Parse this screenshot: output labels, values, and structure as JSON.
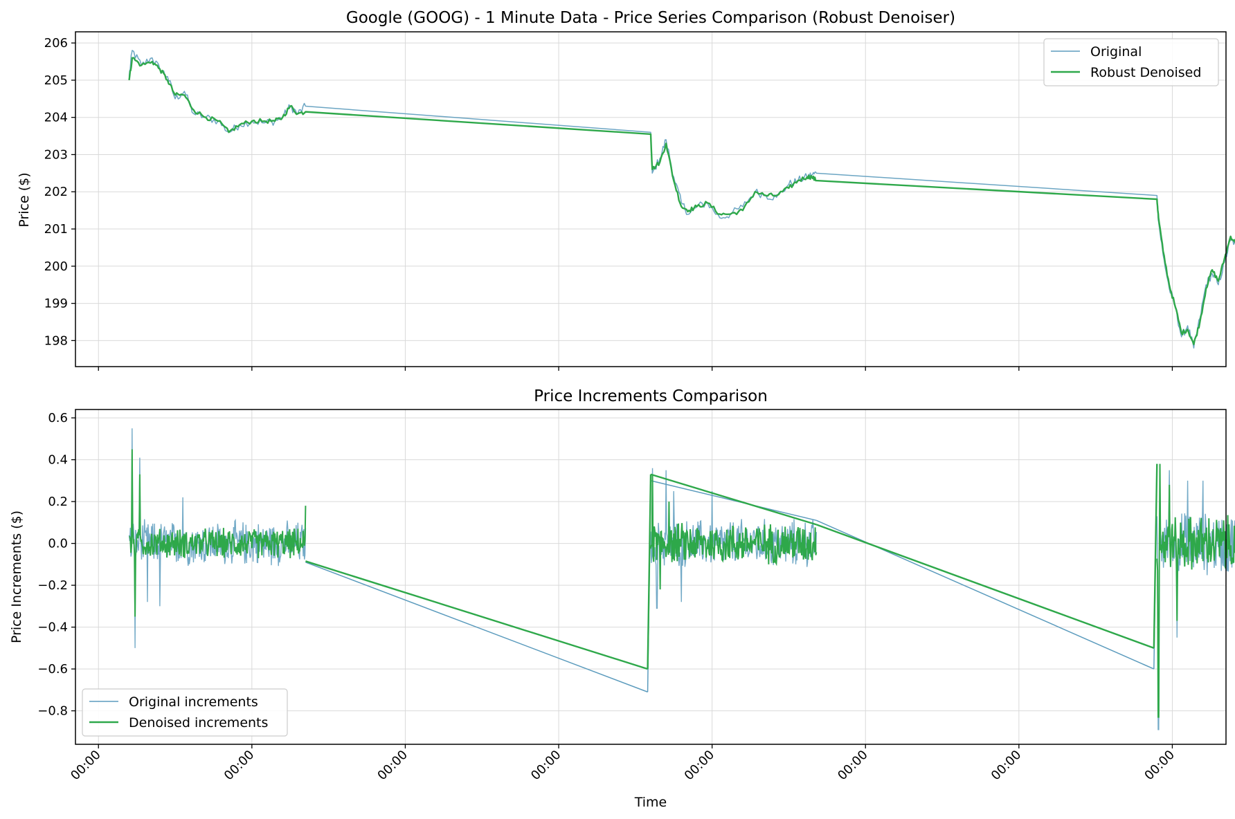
{
  "colors": {
    "original": "#5b9bbd",
    "denoised": "#2ea84a",
    "grid": "#d9d9d9",
    "axis": "#000000"
  },
  "chart_data": [
    {
      "type": "line",
      "title": "Google (GOOG) - 1 Minute Data - Price Series Comparison (Robust Denoiser)",
      "xlabel": "",
      "ylabel": "Price ($)",
      "ylim": [
        197.3,
        206.3
      ],
      "yticks": [
        198,
        199,
        200,
        201,
        202,
        203,
        204,
        205,
        206
      ],
      "xticks": [
        "00:00",
        "00:00",
        "00:00",
        "00:00",
        "00:00",
        "00:00",
        "00:00",
        "00:00"
      ],
      "xlim": [
        -0.15,
        7.35
      ],
      "grid": true,
      "legend_position": "top-right",
      "series": [
        {
          "name": "Original",
          "color": "#5b9bbd",
          "points": [
            [
              0.2,
              205.1
            ],
            [
              0.22,
              205.8
            ],
            [
              0.28,
              205.4
            ],
            [
              0.35,
              205.6
            ],
            [
              0.4,
              205.3
            ],
            [
              0.45,
              205.1
            ],
            [
              0.5,
              204.5
            ],
            [
              0.56,
              204.7
            ],
            [
              0.62,
              204.1
            ],
            [
              0.7,
              204.0
            ],
            [
              0.78,
              203.9
            ],
            [
              0.85,
              203.6
            ],
            [
              0.92,
              203.8
            ],
            [
              1.0,
              203.9
            ],
            [
              1.08,
              203.85
            ],
            [
              1.15,
              203.9
            ],
            [
              1.2,
              204.0
            ],
            [
              1.25,
              204.3
            ],
            [
              1.3,
              204.1
            ],
            [
              1.35,
              204.3
            ],
            [
              3.6,
              203.6
            ],
            [
              3.61,
              202.5
            ],
            [
              3.66,
              202.9
            ],
            [
              3.7,
              203.4
            ],
            [
              3.75,
              202.4
            ],
            [
              3.8,
              201.7
            ],
            [
              3.85,
              201.4
            ],
            [
              3.9,
              201.6
            ],
            [
              3.97,
              201.7
            ],
            [
              4.05,
              201.3
            ],
            [
              4.12,
              201.4
            ],
            [
              4.2,
              201.6
            ],
            [
              4.28,
              202.0
            ],
            [
              4.35,
              201.9
            ],
            [
              4.42,
              201.85
            ],
            [
              4.5,
              202.2
            ],
            [
              4.56,
              202.3
            ],
            [
              4.62,
              202.4
            ],
            [
              4.65,
              202.45
            ],
            [
              4.68,
              202.5
            ],
            [
              6.9,
              201.9
            ],
            [
              6.91,
              201.2
            ],
            [
              6.94,
              200.3
            ],
            [
              6.98,
              199.4
            ],
            [
              7.02,
              198.9
            ],
            [
              7.06,
              198.1
            ],
            [
              7.1,
              198.4
            ],
            [
              7.14,
              197.8
            ],
            [
              7.18,
              198.6
            ],
            [
              7.22,
              199.5
            ],
            [
              7.26,
              199.8
            ],
            [
              7.3,
              199.5
            ],
            [
              7.34,
              200.1
            ],
            [
              7.38,
              200.7
            ],
            [
              7.42,
              200.6
            ],
            [
              7.46,
              200.3
            ],
            [
              7.5,
              200.4
            ]
          ]
        },
        {
          "name": "Robust Denoised",
          "color": "#2ea84a",
          "points": [
            [
              0.2,
              205.0
            ],
            [
              0.22,
              205.6
            ],
            [
              0.28,
              205.4
            ],
            [
              0.35,
              205.5
            ],
            [
              0.4,
              205.3
            ],
            [
              0.45,
              205.0
            ],
            [
              0.5,
              204.6
            ],
            [
              0.56,
              204.6
            ],
            [
              0.62,
              204.2
            ],
            [
              0.7,
              204.0
            ],
            [
              0.78,
              203.9
            ],
            [
              0.85,
              203.6
            ],
            [
              0.92,
              203.8
            ],
            [
              1.0,
              203.9
            ],
            [
              1.08,
              203.9
            ],
            [
              1.15,
              203.9
            ],
            [
              1.2,
              204.0
            ],
            [
              1.25,
              204.3
            ],
            [
              1.3,
              204.1
            ],
            [
              1.35,
              204.15
            ],
            [
              3.6,
              203.55
            ],
            [
              3.61,
              202.6
            ],
            [
              3.66,
              202.8
            ],
            [
              3.7,
              203.3
            ],
            [
              3.75,
              202.3
            ],
            [
              3.8,
              201.6
            ],
            [
              3.85,
              201.5
            ],
            [
              3.9,
              201.6
            ],
            [
              3.97,
              201.7
            ],
            [
              4.05,
              201.4
            ],
            [
              4.12,
              201.4
            ],
            [
              4.2,
              201.5
            ],
            [
              4.28,
              202.0
            ],
            [
              4.35,
              201.9
            ],
            [
              4.42,
              201.9
            ],
            [
              4.5,
              202.1
            ],
            [
              4.56,
              202.3
            ],
            [
              4.62,
              202.4
            ],
            [
              4.65,
              202.4
            ],
            [
              4.68,
              202.3
            ],
            [
              6.9,
              201.8
            ],
            [
              6.91,
              201.3
            ],
            [
              6.94,
              200.4
            ],
            [
              6.98,
              199.5
            ],
            [
              7.02,
              198.9
            ],
            [
              7.06,
              198.2
            ],
            [
              7.1,
              198.3
            ],
            [
              7.14,
              197.9
            ],
            [
              7.18,
              198.5
            ],
            [
              7.22,
              199.4
            ],
            [
              7.26,
              199.9
            ],
            [
              7.3,
              199.6
            ],
            [
              7.34,
              200.2
            ],
            [
              7.38,
              200.8
            ],
            [
              7.42,
              200.6
            ],
            [
              7.46,
              200.35
            ],
            [
              7.5,
              200.35
            ]
          ]
        }
      ]
    },
    {
      "type": "line",
      "title": "Price Increments Comparison",
      "xlabel": "Time",
      "ylabel": "Price Increments ($)",
      "ylim": [
        -0.96,
        0.64
      ],
      "yticks": [
        -0.8,
        -0.6,
        -0.4,
        -0.2,
        0.0,
        0.2,
        0.4,
        0.6
      ],
      "yticklabels": [
        "−0.8",
        "−0.6",
        "−0.4",
        "−0.2",
        "0.0",
        "0.2",
        "0.4",
        "0.6"
      ],
      "xticks": [
        "00:00",
        "00:00",
        "00:00",
        "00:00",
        "00:00",
        "00:00",
        "00:00",
        "00:00"
      ],
      "xlim": [
        -0.15,
        7.35
      ],
      "grid": true,
      "legend_position": "bottom-left",
      "series": [
        {
          "name": "Original increments",
          "color": "#5b9bbd",
          "segments": [
            {
              "x0": 0.2,
              "x1": 1.35,
              "amp": 0.12,
              "spikes": [
                [
                  0.22,
                  0.55
                ],
                [
                  0.24,
                  -0.5
                ],
                [
                  0.27,
                  0.41
                ],
                [
                  0.32,
                  -0.28
                ],
                [
                  0.55,
                  0.22
                ],
                [
                  0.4,
                  -0.3
                ]
              ]
            },
            {
              "x0": 3.6,
              "x1": 4.68,
              "amp": 0.13,
              "spikes": [
                [
                  3.61,
                  0.36
                ],
                [
                  3.64,
                  -0.31
                ],
                [
                  3.7,
                  0.35
                ],
                [
                  3.75,
                  0.25
                ],
                [
                  3.8,
                  -0.28
                ],
                [
                  4.0,
                  0.25
                ]
              ]
            },
            {
              "x0": 6.9,
              "x1": 7.5,
              "amp": 0.17,
              "spikes": [
                [
                  6.91,
                  -0.89
                ],
                [
                  6.92,
                  0.38
                ],
                [
                  6.98,
                  0.35
                ],
                [
                  7.03,
                  -0.45
                ],
                [
                  7.1,
                  0.3
                ],
                [
                  7.2,
                  0.3
                ]
              ]
            }
          ],
          "points": [
            [
              1.35,
              -0.09
            ],
            [
              3.58,
              -0.71
            ],
            [
              3.6,
              0.3
            ],
            [
              4.68,
              0.11
            ],
            [
              6.88,
              -0.6
            ],
            [
              6.9,
              0.38
            ]
          ]
        },
        {
          "name": "Denoised increments",
          "color": "#2ea84a",
          "segments": [
            {
              "x0": 0.2,
              "x1": 1.35,
              "amp": 0.08,
              "spikes": [
                [
                  0.22,
                  0.45
                ],
                [
                  0.24,
                  -0.35
                ],
                [
                  0.27,
                  0.33
                ],
                [
                  1.35,
                  0.18
                ]
              ]
            },
            {
              "x0": 3.6,
              "x1": 4.68,
              "amp": 0.11,
              "spikes": [
                [
                  3.61,
                  0.33
                ],
                [
                  3.66,
                  -0.22
                ],
                [
                  3.72,
                  0.2
                ]
              ]
            },
            {
              "x0": 6.9,
              "x1": 7.5,
              "amp": 0.15,
              "spikes": [
                [
                  6.91,
                  -0.83
                ],
                [
                  6.92,
                  0.38
                ],
                [
                  6.98,
                  0.28
                ],
                [
                  7.03,
                  -0.37
                ]
              ]
            }
          ],
          "points": [
            [
              1.35,
              -0.085
            ],
            [
              3.58,
              -0.6
            ],
            [
              3.6,
              0.33
            ],
            [
              4.68,
              0.09
            ],
            [
              6.88,
              -0.5
            ],
            [
              6.9,
              0.38
            ]
          ]
        }
      ]
    }
  ]
}
